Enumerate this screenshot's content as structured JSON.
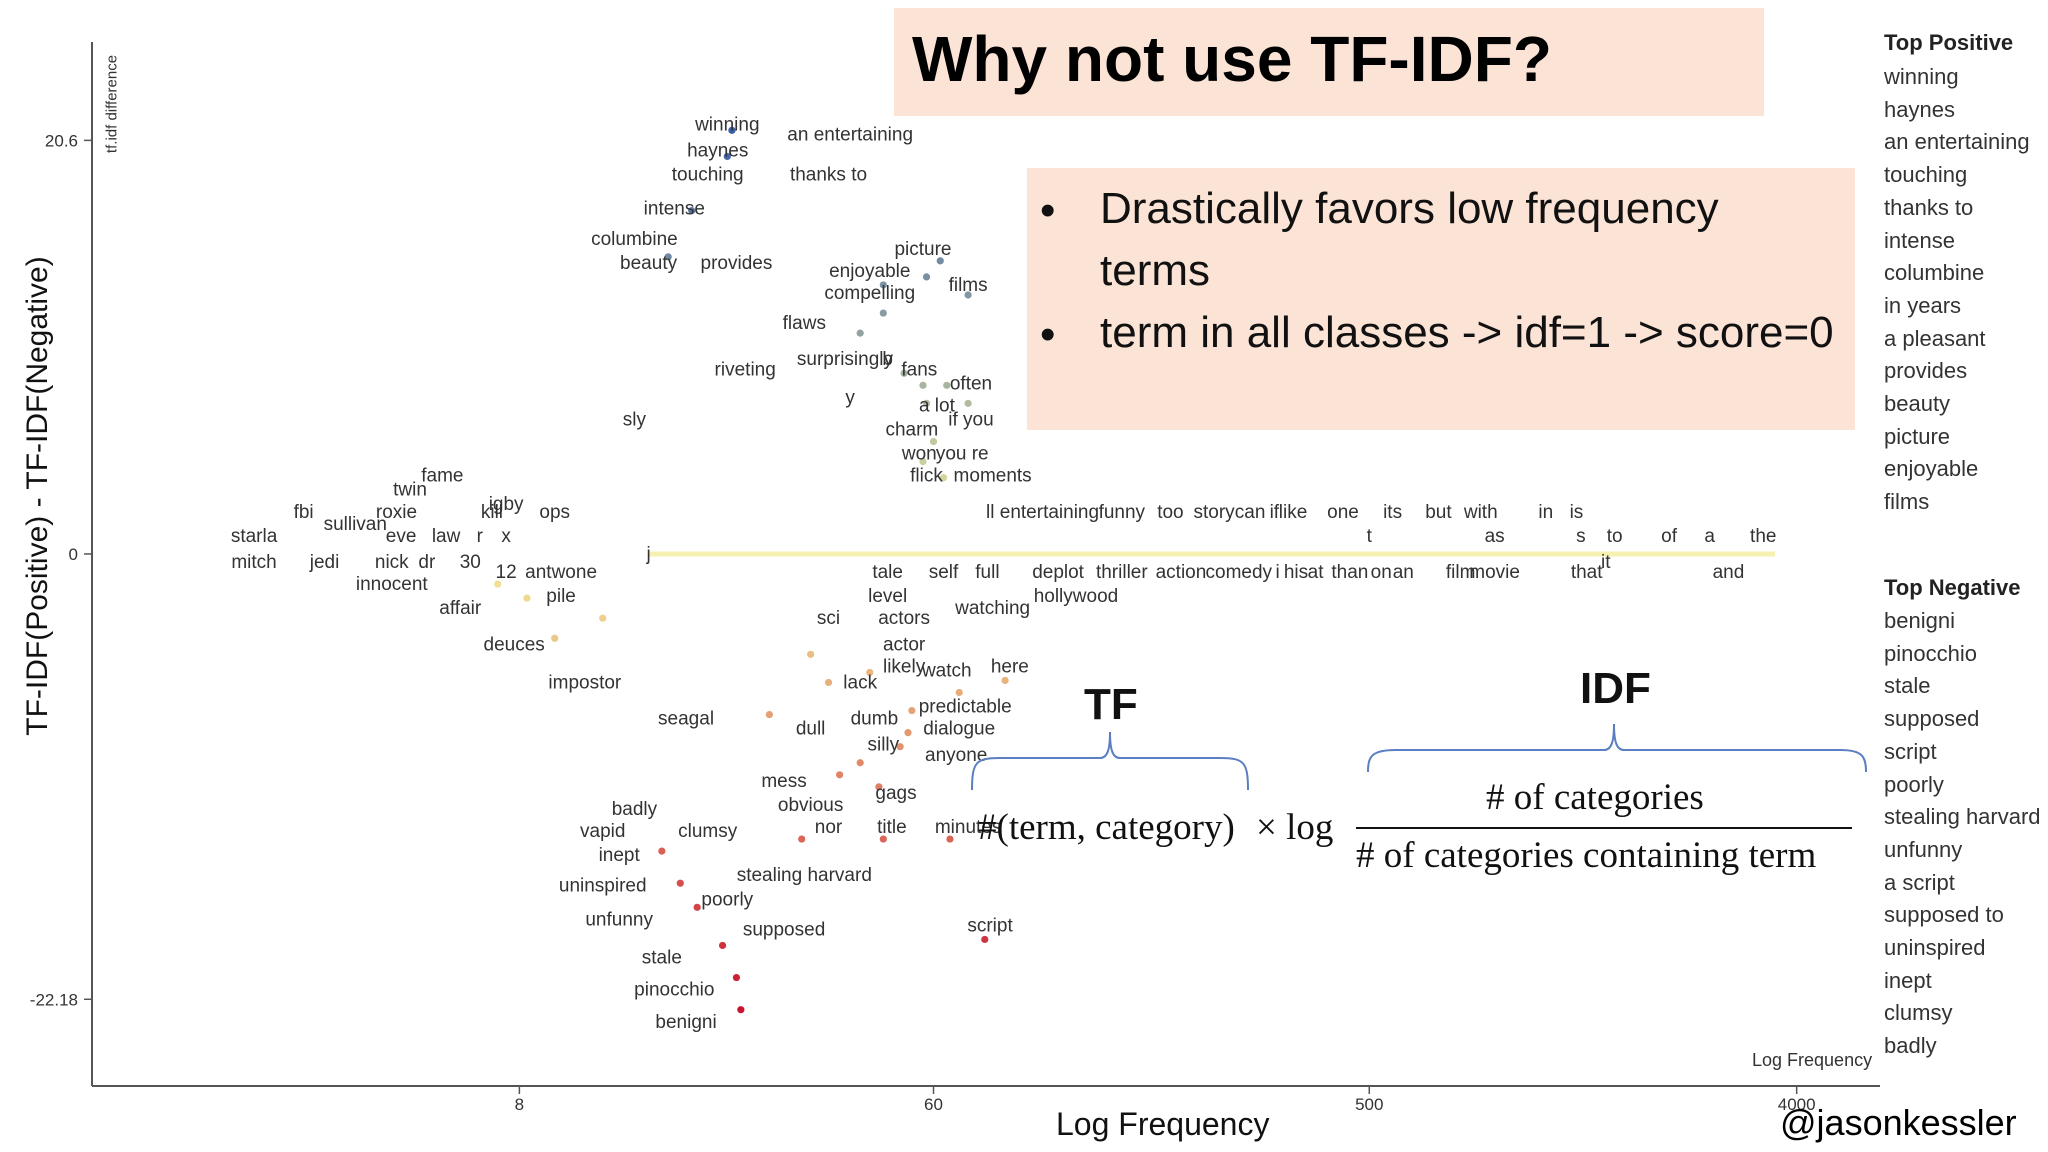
{
  "slide": {
    "title": "Why not use TF-IDF?",
    "bullets": [
      {
        "symbol": "•",
        "text": "Drastically favors low frequency terms"
      },
      {
        "symbol": "•",
        "text": "term in all classes -> idf=1 -> score=0"
      }
    ],
    "formula": {
      "tf_label": "TF",
      "idf_label": "IDF",
      "tf_expr": "#(term, category)",
      "operator": "× log",
      "numerator": "# of categories",
      "denominator": "# of categories containing term"
    },
    "author": "@jasonkessler"
  },
  "rankings": {
    "positive_title": "Top Positive",
    "positive": [
      "winning",
      "haynes",
      "an entertaining",
      "touching",
      "thanks to",
      "intense",
      "columbine",
      "in years",
      "a pleasant",
      "provides",
      "beauty",
      "picture",
      "enjoyable",
      "films"
    ],
    "negative_title": "Top Negative",
    "negative": [
      "benigni",
      "pinocchio",
      "stale",
      "supposed",
      "script",
      "poorly",
      "stealing harvard",
      "unfunny",
      "a script",
      "supposed to",
      "uninspired",
      "inept",
      "clumsy",
      "badly"
    ]
  },
  "chart_data": {
    "type": "scatter",
    "title": "",
    "xlabel": "Log Frequency",
    "xlabel_small": "Log Frequency",
    "ylabel": "TF-IDF(Positive) - TF-IDF(Negative)",
    "ylabel_small": "tf.idf difference",
    "x_scale": "log",
    "x_ticks": [
      8,
      60,
      500,
      4000
    ],
    "y_ticks": [
      20.6,
      0,
      -22.18
    ],
    "xlim": [
      1,
      6000
    ],
    "ylim": [
      -26.5,
      25.5
    ],
    "grid": false,
    "legend": "none",
    "colors": {
      "positive": "#3b5ea8",
      "neutral": "#f4ef9a",
      "negative": "#c8102e",
      "word": "#333333",
      "axis": "#555555"
    },
    "labels": [
      {
        "text": "winning",
        "x": 22,
        "y": 21.1
      },
      {
        "text": "an entertaining",
        "x": 40,
        "y": 20.6
      },
      {
        "text": "haynes",
        "x": 21,
        "y": 19.8
      },
      {
        "text": "touching",
        "x": 20,
        "y": 18.6
      },
      {
        "text": "thanks to",
        "x": 36,
        "y": 18.6
      },
      {
        "text": "intense",
        "x": 17,
        "y": 16.9
      },
      {
        "text": "columbine",
        "x": 14,
        "y": 15.4
      },
      {
        "text": "beauty",
        "x": 15,
        "y": 14.2
      },
      {
        "text": "provides",
        "x": 23,
        "y": 14.2
      },
      {
        "text": "enjoyable",
        "x": 44,
        "y": 13.8
      },
      {
        "text": "compelling",
        "x": 44,
        "y": 12.7
      },
      {
        "text": "picture",
        "x": 57,
        "y": 14.9
      },
      {
        "text": "films",
        "x": 71,
        "y": 13.1
      },
      {
        "text": "flaws",
        "x": 32,
        "y": 11.2
      },
      {
        "text": "surprisingly",
        "x": 39,
        "y": 9.4
      },
      {
        "text": "b",
        "x": 48,
        "y": 9.4
      },
      {
        "text": "riveting",
        "x": 24,
        "y": 8.9
      },
      {
        "text": "fans",
        "x": 56,
        "y": 8.9
      },
      {
        "text": "often",
        "x": 72,
        "y": 8.2
      },
      {
        "text": "y",
        "x": 40,
        "y": 7.5
      },
      {
        "text": "a lot",
        "x": 61,
        "y": 7.1
      },
      {
        "text": "sly",
        "x": 14,
        "y": 6.4
      },
      {
        "text": "if you",
        "x": 72,
        "y": 6.4
      },
      {
        "text": "charm",
        "x": 54,
        "y": 5.9
      },
      {
        "text": "won",
        "x": 56,
        "y": 4.7
      },
      {
        "text": "you re",
        "x": 69,
        "y": 4.7
      },
      {
        "text": "flick",
        "x": 58,
        "y": 3.6
      },
      {
        "text": "moments",
        "x": 80,
        "y": 3.6
      },
      {
        "text": "fame",
        "x": 5.5,
        "y": 3.6
      },
      {
        "text": "twin",
        "x": 4.7,
        "y": 2.9
      },
      {
        "text": "igby",
        "x": 7.5,
        "y": 2.2
      },
      {
        "text": "fbi",
        "x": 2.8,
        "y": 1.8
      },
      {
        "text": "sullivan",
        "x": 3.6,
        "y": 1.2
      },
      {
        "text": "roxie",
        "x": 4.4,
        "y": 1.8
      },
      {
        "text": "kill",
        "x": 7.0,
        "y": 1.8
      },
      {
        "text": "ops",
        "x": 9.5,
        "y": 1.8
      },
      {
        "text": "ll entertaining",
        "x": 102,
        "y": 1.8
      },
      {
        "text": "funny",
        "x": 150,
        "y": 1.8
      },
      {
        "text": "too",
        "x": 190,
        "y": 1.8
      },
      {
        "text": "story",
        "x": 235,
        "y": 1.8
      },
      {
        "text": "can",
        "x": 280,
        "y": 1.8
      },
      {
        "text": "if",
        "x": 315,
        "y": 1.8
      },
      {
        "text": "like",
        "x": 345,
        "y": 1.8
      },
      {
        "text": "one",
        "x": 440,
        "y": 1.8
      },
      {
        "text": "its",
        "x": 560,
        "y": 1.8
      },
      {
        "text": "but",
        "x": 700,
        "y": 1.8
      },
      {
        "text": "with",
        "x": 860,
        "y": 1.8
      },
      {
        "text": "in",
        "x": 1180,
        "y": 1.8
      },
      {
        "text": "is",
        "x": 1370,
        "y": 1.8
      },
      {
        "text": "starla",
        "x": 2.2,
        "y": 0.6
      },
      {
        "text": "eve",
        "x": 4.5,
        "y": 0.6
      },
      {
        "text": "law",
        "x": 5.6,
        "y": 0.6
      },
      {
        "text": "r",
        "x": 6.6,
        "y": 0.6
      },
      {
        "text": "x",
        "x": 7.5,
        "y": 0.6
      },
      {
        "text": "t",
        "x": 500,
        "y": 0.6
      },
      {
        "text": "as",
        "x": 920,
        "y": 0.6
      },
      {
        "text": "s",
        "x": 1400,
        "y": 0.6
      },
      {
        "text": "to",
        "x": 1650,
        "y": 0.6
      },
      {
        "text": "of",
        "x": 2150,
        "y": 0.6
      },
      {
        "text": "a",
        "x": 2620,
        "y": 0.6
      },
      {
        "text": "the",
        "x": 3400,
        "y": 0.6
      },
      {
        "text": "j",
        "x": 15,
        "y": -0.3
      },
      {
        "text": "mitch",
        "x": 2.2,
        "y": -0.7
      },
      {
        "text": "jedi",
        "x": 3.1,
        "y": -0.7
      },
      {
        "text": "nick",
        "x": 4.3,
        "y": -0.7
      },
      {
        "text": "dr",
        "x": 5.1,
        "y": -0.7
      },
      {
        "text": "30",
        "x": 6.3,
        "y": -0.7
      },
      {
        "text": "it",
        "x": 1580,
        "y": -0.7
      },
      {
        "text": "12",
        "x": 7.5,
        "y": -1.2
      },
      {
        "text": "antwone",
        "x": 9.8,
        "y": -1.2
      },
      {
        "text": "tale",
        "x": 48,
        "y": -1.2
      },
      {
        "text": "self",
        "x": 63,
        "y": -1.2
      },
      {
        "text": "full",
        "x": 78,
        "y": -1.2
      },
      {
        "text": "deplot",
        "x": 110,
        "y": -1.2
      },
      {
        "text": "thriller",
        "x": 150,
        "y": -1.2
      },
      {
        "text": "action",
        "x": 200,
        "y": -1.2
      },
      {
        "text": "comedy",
        "x": 265,
        "y": -1.2
      },
      {
        "text": "i",
        "x": 320,
        "y": -1.2
      },
      {
        "text": "his",
        "x": 350,
        "y": -1.2
      },
      {
        "text": "at",
        "x": 385,
        "y": -1.2
      },
      {
        "text": "than",
        "x": 455,
        "y": -1.2
      },
      {
        "text": "on",
        "x": 530,
        "y": -1.2
      },
      {
        "text": "an",
        "x": 590,
        "y": -1.2
      },
      {
        "text": "film",
        "x": 780,
        "y": -1.2
      },
      {
        "text": "movie",
        "x": 920,
        "y": -1.2
      },
      {
        "text": "that",
        "x": 1440,
        "y": -1.2
      },
      {
        "text": "and",
        "x": 2870,
        "y": -1.2
      },
      {
        "text": "innocent",
        "x": 4.3,
        "y": -1.8
      },
      {
        "text": "level",
        "x": 48,
        "y": -2.4
      },
      {
        "text": "hollywood",
        "x": 120,
        "y": -2.4
      },
      {
        "text": "pile",
        "x": 9.8,
        "y": -2.4
      },
      {
        "text": "watching",
        "x": 80,
        "y": -3.0
      },
      {
        "text": "affair",
        "x": 6.0,
        "y": -3.0
      },
      {
        "text": "sci",
        "x": 36,
        "y": -3.5
      },
      {
        "text": "actors",
        "x": 52,
        "y": -3.5
      },
      {
        "text": "deuces",
        "x": 7.8,
        "y": -4.8
      },
      {
        "text": "actor",
        "x": 52,
        "y": -4.8
      },
      {
        "text": "likely",
        "x": 52,
        "y": -5.9
      },
      {
        "text": "watch",
        "x": 64,
        "y": -6.1
      },
      {
        "text": "here",
        "x": 87,
        "y": -5.9
      },
      {
        "text": "impostor",
        "x": 11,
        "y": -6.7
      },
      {
        "text": "lack",
        "x": 42,
        "y": -6.7
      },
      {
        "text": "predictable",
        "x": 70,
        "y": -7.9
      },
      {
        "text": "seagal",
        "x": 18,
        "y": -8.5
      },
      {
        "text": "dumb",
        "x": 45,
        "y": -8.5
      },
      {
        "text": "dialogue",
        "x": 68,
        "y": -9.0
      },
      {
        "text": "dull",
        "x": 33,
        "y": -9.0
      },
      {
        "text": "silly",
        "x": 47,
        "y": -9.8
      },
      {
        "text": "anyone",
        "x": 67,
        "y": -10.3
      },
      {
        "text": "mess",
        "x": 29,
        "y": -11.6
      },
      {
        "text": "gags",
        "x": 50,
        "y": -12.2
      },
      {
        "text": "obvious",
        "x": 33,
        "y": -12.8
      },
      {
        "text": "badly",
        "x": 14,
        "y": -13.0
      },
      {
        "text": "vapid",
        "x": 12,
        "y": -14.1
      },
      {
        "text": "clumsy",
        "x": 20,
        "y": -14.1
      },
      {
        "text": "nor",
        "x": 36,
        "y": -13.9
      },
      {
        "text": "title",
        "x": 49,
        "y": -13.9
      },
      {
        "text": "minutes",
        "x": 71,
        "y": -13.9
      },
      {
        "text": "inept",
        "x": 13,
        "y": -15.3
      },
      {
        "text": "stealing harvard",
        "x": 32,
        "y": -16.3
      },
      {
        "text": "uninspired",
        "x": 12,
        "y": -16.8
      },
      {
        "text": "poorly",
        "x": 22,
        "y": -17.5
      },
      {
        "text": "unfunny",
        "x": 13,
        "y": -18.5
      },
      {
        "text": "supposed",
        "x": 29,
        "y": -19.0
      },
      {
        "text": "script",
        "x": 79,
        "y": -18.8
      },
      {
        "text": "stale",
        "x": 16,
        "y": -20.4
      },
      {
        "text": "pinocchio",
        "x": 17,
        "y": -22.0
      },
      {
        "text": "benigni",
        "x": 18,
        "y": -23.6
      }
    ],
    "points": [
      {
        "x": 22.5,
        "y": 21.1
      },
      {
        "x": 22.0,
        "y": 19.8
      },
      {
        "x": 18.5,
        "y": 17.1
      },
      {
        "x": 16.5,
        "y": 14.8
      },
      {
        "x": 58.0,
        "y": 13.8
      },
      {
        "x": 47.0,
        "y": 13.4
      },
      {
        "x": 47.0,
        "y": 12.0
      },
      {
        "x": 42.0,
        "y": 11.0
      },
      {
        "x": 62.0,
        "y": 14.6
      },
      {
        "x": 71.0,
        "y": 12.9
      },
      {
        "x": 52.0,
        "y": 9.0
      },
      {
        "x": 57.0,
        "y": 8.4
      },
      {
        "x": 58.0,
        "y": 7.5
      },
      {
        "x": 64.0,
        "y": 8.4
      },
      {
        "x": 71.0,
        "y": 7.5
      },
      {
        "x": 60.0,
        "y": 5.6
      },
      {
        "x": 57.0,
        "y": 4.6
      },
      {
        "x": 63.0,
        "y": 3.8
      },
      {
        "x": 31.6,
        "y": -14.2
      },
      {
        "x": 47.0,
        "y": -14.2
      },
      {
        "x": 16.0,
        "y": -14.8
      },
      {
        "x": 17.5,
        "y": -16.4
      },
      {
        "x": 19.0,
        "y": -17.6
      },
      {
        "x": 21.5,
        "y": -19.5
      },
      {
        "x": 23.0,
        "y": -21.1
      },
      {
        "x": 23.5,
        "y": -22.7
      },
      {
        "x": 65.0,
        "y": -14.2
      },
      {
        "x": 77.0,
        "y": -19.2
      },
      {
        "x": 38.0,
        "y": -11.0
      },
      {
        "x": 46.0,
        "y": -11.6
      },
      {
        "x": 42.0,
        "y": -10.4
      },
      {
        "x": 53.0,
        "y": -8.9
      },
      {
        "x": 51.0,
        "y": -9.6
      },
      {
        "x": 54.0,
        "y": -7.8
      },
      {
        "x": 68.0,
        "y": -6.9
      },
      {
        "x": 85.0,
        "y": -6.3
      },
      {
        "x": 27.0,
        "y": -8.0
      },
      {
        "x": 36.0,
        "y": -6.4
      },
      {
        "x": 44.0,
        "y": -5.9
      },
      {
        "x": 33.0,
        "y": -5.0
      },
      {
        "x": 12.0,
        "y": -3.2
      },
      {
        "x": 9.5,
        "y": -4.2
      },
      {
        "x": 8.3,
        "y": -2.2
      },
      {
        "x": 7.2,
        "y": -1.5
      }
    ]
  }
}
